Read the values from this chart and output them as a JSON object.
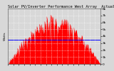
{
  "title": "Solar PV/Inverter Performance West Array  Actual & Average Power Output",
  "ylabel_left": "Watts",
  "background_color": "#d8d8d8",
  "plot_bg_color": "#d8d8d8",
  "grid_color": "#ffffff",
  "bar_color": "#ff0000",
  "avg_line_color": "#0000ff",
  "avg_value": 0.44,
  "ylim": [
    0,
    1.0
  ],
  "ytick_labels": [
    "0",
    "1k",
    "2k",
    "3k",
    "4k",
    "5k",
    "6k",
    "7k",
    "8k"
  ],
  "num_points": 144,
  "title_fontsize": 3.8,
  "tick_fontsize": 3.2,
  "ylabel_fontsize": 3.2
}
